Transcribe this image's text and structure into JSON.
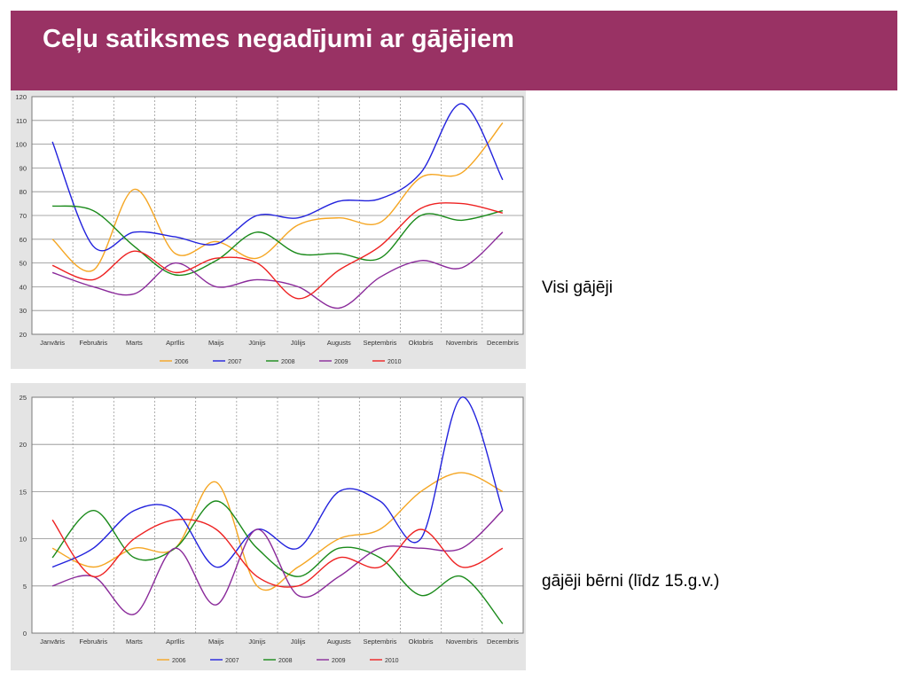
{
  "slide": {
    "title": "Ceļu satiksmes negadījumi ar gājējiem",
    "chart1_label": "Visi gājēji",
    "chart2_label": "gājēji bērni (līdz 15.g.v.)"
  },
  "colors": {
    "header": "#993264",
    "panel": "#e4e4e4",
    "2006": "#f5a623",
    "2007": "#2222dd",
    "2008": "#1a8a1a",
    "2009": "#8a2a9a",
    "2010": "#ee2222"
  },
  "chart_data": [
    {
      "type": "line",
      "title": "",
      "xlabel": "",
      "ylabel": "",
      "categories": [
        "Janvāris",
        "Februāris",
        "Marts",
        "Aprīlis",
        "Maijs",
        "Jūnijs",
        "Jūlijs",
        "Augusts",
        "Septembris",
        "Oktobris",
        "Novembris",
        "Decembris"
      ],
      "ylim": [
        20,
        120
      ],
      "yticks": [
        20,
        30,
        40,
        50,
        60,
        70,
        80,
        90,
        100,
        110,
        120
      ],
      "grid": true,
      "legend": "bottom",
      "series": [
        {
          "name": "2006",
          "color": "#f5a623",
          "values": [
            60,
            47,
            81,
            54,
            59,
            52,
            66,
            69,
            67,
            86,
            88,
            109
          ]
        },
        {
          "name": "2007",
          "color": "#2222dd",
          "values": [
            101,
            57,
            63,
            61,
            58,
            70,
            69,
            76,
            77,
            88,
            117,
            85
          ]
        },
        {
          "name": "2008",
          "color": "#1a8a1a",
          "values": [
            74,
            72,
            57,
            45,
            51,
            63,
            54,
            54,
            52,
            70,
            68,
            72
          ]
        },
        {
          "name": "2009",
          "color": "#8a2a9a",
          "values": [
            46,
            40,
            37,
            50,
            40,
            43,
            40,
            31,
            44,
            51,
            48,
            63
          ]
        },
        {
          "name": "2010",
          "color": "#ee2222",
          "values": [
            49,
            43,
            55,
            46,
            52,
            50,
            35,
            47,
            57,
            73,
            75,
            71
          ]
        }
      ]
    },
    {
      "type": "line",
      "title": "",
      "xlabel": "",
      "ylabel": "",
      "categories": [
        "Janvāris",
        "Februāris",
        "Marts",
        "Aprīlis",
        "Maijs",
        "Jūnijs",
        "Jūlijs",
        "Augusts",
        "Septembris",
        "Oktobris",
        "Novembris",
        "Decembris"
      ],
      "ylim": [
        0,
        25
      ],
      "yticks": [
        0,
        5,
        10,
        15,
        20,
        25
      ],
      "grid": true,
      "legend": "bottom",
      "series": [
        {
          "name": "2006",
          "color": "#f5a623",
          "values": [
            9,
            7,
            9,
            9,
            16,
            5,
            7,
            10,
            11,
            15,
            17,
            15
          ]
        },
        {
          "name": "2007",
          "color": "#2222dd",
          "values": [
            7,
            9,
            13,
            13,
            7,
            11,
            9,
            15,
            14,
            10,
            25,
            13
          ]
        },
        {
          "name": "2008",
          "color": "#1a8a1a",
          "values": [
            8,
            13,
            8,
            9,
            14,
            9,
            6,
            9,
            8,
            4,
            6,
            1
          ]
        },
        {
          "name": "2009",
          "color": "#8a2a9a",
          "values": [
            5,
            6,
            2,
            9,
            3,
            11,
            4,
            6,
            9,
            9,
            9,
            13
          ]
        },
        {
          "name": "2010",
          "color": "#ee2222",
          "values": [
            12,
            6,
            10,
            12,
            11,
            6,
            5,
            8,
            7,
            11,
            7,
            9
          ]
        }
      ]
    }
  ]
}
